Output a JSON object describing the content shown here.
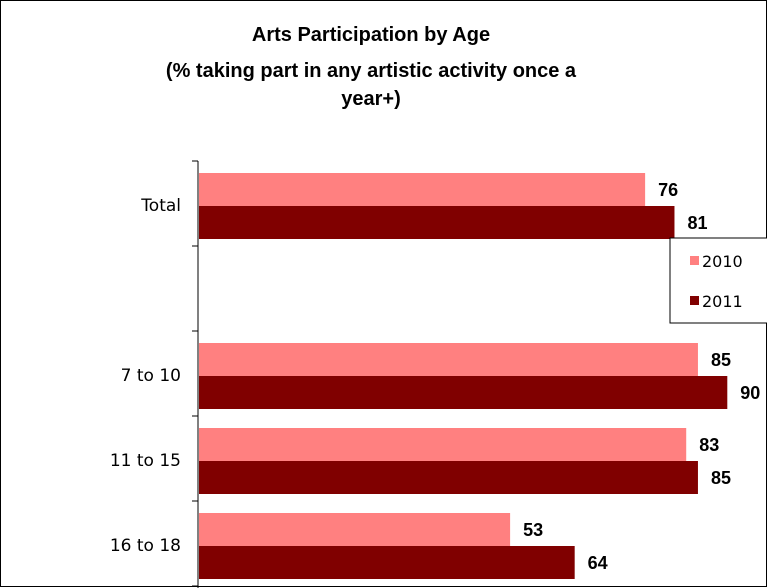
{
  "chart_data": {
    "type": "bar",
    "orientation": "horizontal",
    "title_lines": [
      "Arts Participation by Age",
      "(% taking part in any artistic activity once a",
      "year+)"
    ],
    "categories": [
      "Total",
      "",
      "7 to 10",
      "11 to 15",
      "16 to 18"
    ],
    "series": [
      {
        "name": "2010",
        "color": "#FF8080",
        "values": [
          76,
          null,
          85,
          83,
          53
        ]
      },
      {
        "name": "2011",
        "color": "#800000",
        "values": [
          81,
          null,
          90,
          85,
          64
        ]
      }
    ],
    "xlim": [
      0,
      100
    ],
    "grid": false,
    "legend_position": "right"
  }
}
